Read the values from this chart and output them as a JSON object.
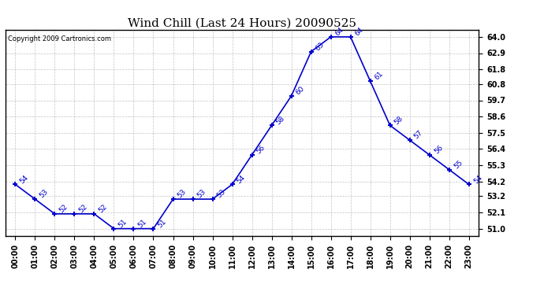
{
  "title": "Wind Chill (Last 24 Hours) 20090525",
  "copyright": "Copyright 2009 Cartronics.com",
  "hours": [
    "00:00",
    "01:00",
    "02:00",
    "03:00",
    "04:00",
    "05:00",
    "06:00",
    "07:00",
    "08:00",
    "09:00",
    "10:00",
    "11:00",
    "12:00",
    "13:00",
    "14:00",
    "15:00",
    "16:00",
    "17:00",
    "18:00",
    "19:00",
    "20:00",
    "21:00",
    "22:00",
    "23:00"
  ],
  "values": [
    54,
    53,
    52,
    52,
    52,
    51,
    51,
    51,
    53,
    53,
    53,
    54,
    56,
    58,
    60,
    63,
    64,
    64,
    61,
    58,
    57,
    56,
    55,
    54
  ],
  "ylim_min": 51.0,
  "ylim_max": 64.0,
  "yticks": [
    51.0,
    52.1,
    53.2,
    54.2,
    55.3,
    56.4,
    57.5,
    58.6,
    59.7,
    60.8,
    61.8,
    62.9,
    64.0
  ],
  "line_color": "#0000cc",
  "marker_color": "#0000cc",
  "background_color": "#ffffff",
  "grid_color": "#aaaaaa",
  "title_fontsize": 11,
  "tick_fontsize": 7,
  "annotation_fontsize": 6.5,
  "copyright_fontsize": 6
}
